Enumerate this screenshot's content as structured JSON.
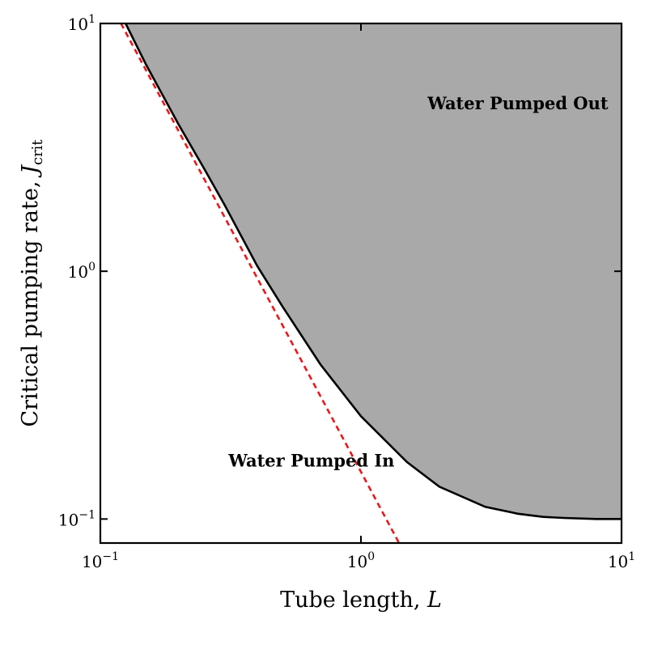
{
  "chart_data": {
    "type": "line",
    "xscale": "log",
    "yscale": "log",
    "xlim": [
      0.1,
      10
    ],
    "ylim": [
      0.08,
      10
    ],
    "grid": false,
    "xlabel": {
      "text": "Tube length, ",
      "var": "L"
    },
    "ylabel": {
      "text": "Critical pumping rate, ",
      "var": "J",
      "sub": "crit"
    },
    "x_ticks": [
      {
        "value": 0.1,
        "base": "10",
        "exp": "−1"
      },
      {
        "value": 1,
        "base": "10",
        "exp": "0"
      },
      {
        "value": 10,
        "base": "10",
        "exp": "1"
      }
    ],
    "y_ticks": [
      {
        "value": 0.1,
        "base": "10",
        "exp": "−1"
      },
      {
        "value": 1,
        "base": "10",
        "exp": "0"
      },
      {
        "value": 10,
        "base": "10",
        "exp": "1"
      }
    ],
    "series": [
      {
        "style": "solid",
        "color": "#000000",
        "x": [
          0.125,
          0.15,
          0.2,
          0.25,
          0.3,
          0.4,
          0.5,
          0.7,
          1.0,
          1.5,
          2.0,
          3.0,
          4.0,
          5.0,
          6.0,
          8.0,
          10.0
        ],
        "y": [
          10.0,
          6.8,
          3.9,
          2.6,
          1.85,
          1.05,
          0.72,
          0.42,
          0.26,
          0.17,
          0.135,
          0.112,
          0.105,
          0.102,
          0.101,
          0.1,
          0.1
        ]
      },
      {
        "style": "dashed",
        "color": "#e8191c",
        "x": [
          0.12,
          1.4
        ],
        "y": [
          10.0,
          0.08
        ]
      }
    ],
    "shaded_region": {
      "color": "#a9a9a9",
      "description_label": "Water Pumped Out"
    },
    "annotations": [
      {
        "text": "Water Pumped Out",
        "x": 1.8,
        "y": 4.5
      },
      {
        "text": "Water Pumped In",
        "x": 0.31,
        "y": 0.163
      }
    ]
  }
}
